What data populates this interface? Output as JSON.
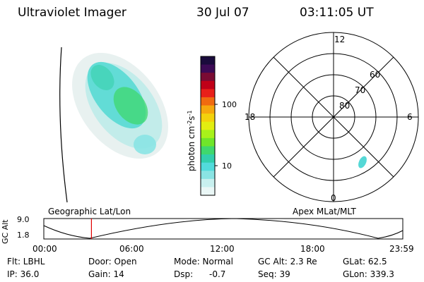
{
  "header": {
    "title": "Ultraviolet Imager",
    "date": "30 Jul 07",
    "time": "03:11:05 UT"
  },
  "colorbar": {
    "label": "photon cm⁻²s⁻¹",
    "label_main": "photon cm",
    "label_sup1": "-2",
    "label_mid": "s",
    "label_sup2": "-1",
    "ticks": [
      "100",
      "10"
    ],
    "colors": [
      "#1a0b3c",
      "#3c0a55",
      "#7a0b33",
      "#c00018",
      "#e8201a",
      "#f06a10",
      "#f6a80e",
      "#f3d20c",
      "#e2ee11",
      "#a8f21a",
      "#6fe62a",
      "#3fd86d",
      "#32cfac",
      "#52dbdb",
      "#8ae4e4",
      "#c8f0ef",
      "#eaf7f6"
    ]
  },
  "polar_plot": {
    "labels": {
      "top": "12",
      "bottom": "0",
      "left": "18",
      "right": "6"
    },
    "lat_rings": [
      "80",
      "70",
      "60"
    ]
  },
  "timeline": {
    "ylabel": "GC Alt",
    "y_ticks": [
      "9.0",
      "1.8"
    ],
    "left_title": "Geographic Lat/Lon",
    "right_title": "Apex MLat/MLT",
    "x_ticks": [
      "00:00",
      "06:00",
      "12:00",
      "18:00",
      "23:59"
    ],
    "marker_time_hours": 3.185
  },
  "info": {
    "filter": "Flt: LBHL",
    "door": "Door: Open",
    "mode": "Mode: Normal",
    "gc_alt": "GC Alt: 2.3 Re",
    "glat": "GLat: 62.5",
    "ip": "IP: 36.0",
    "gain": "Gain: 14",
    "dsp_label": "Dsp:",
    "dsp_value": "-0.7",
    "seq": "Seq: 39",
    "glon": "GLon: 339.3"
  }
}
